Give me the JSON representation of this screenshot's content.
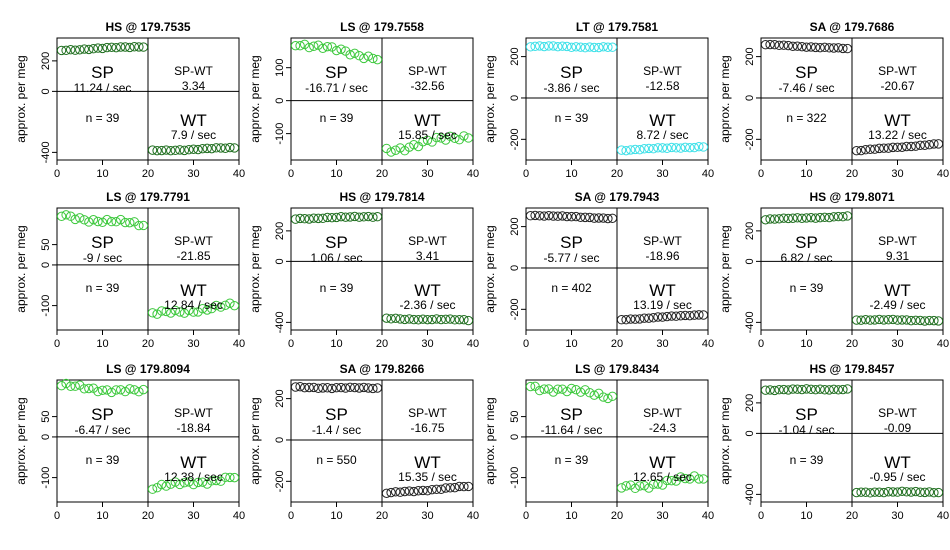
{
  "ylabel": "approx. per meg",
  "x_ticks": [
    0,
    10,
    20,
    30,
    40
  ],
  "chart_data": [
    {
      "type": "scatter",
      "title": "HS @ 179.7535",
      "color": "#1f6e1f",
      "xlim": [
        0,
        40
      ],
      "ylim": [
        -450,
        350
      ],
      "y_ticks": [
        -400,
        0,
        200
      ],
      "split_x": 20,
      "split_y": 0,
      "sp": {
        "label": "SP",
        "value": "11.24 / sec"
      },
      "spwt": {
        "label": "SP-WT",
        "value": "3.34"
      },
      "n": "n = 39",
      "wt": {
        "label": "WT",
        "value": "7.9 / sec"
      },
      "seg1": [
        1,
        19,
        270,
        295,
        10
      ],
      "seg2": [
        21,
        39,
        -390,
        -370,
        10
      ]
    },
    {
      "type": "scatter",
      "title": "LS @ 179.7558",
      "color": "#3cc83c",
      "xlim": [
        0,
        40
      ],
      "ylim": [
        -180,
        190
      ],
      "y_ticks": [
        -100,
        0,
        100
      ],
      "split_x": 20,
      "split_y": 0,
      "sp": {
        "label": "SP",
        "value": "-16.71 / sec"
      },
      "spwt": {
        "label": "SP-WT",
        "value": "-32.56"
      },
      "n": "n = 39",
      "wt": {
        "label": "WT",
        "value": "15.85 / sec"
      },
      "seg1": [
        1,
        19,
        175,
        130,
        20
      ],
      "seg2": [
        21,
        39,
        -150,
        -105,
        25
      ]
    },
    {
      "type": "scatter",
      "title": "LT @ 179.7581",
      "color": "#3ae0e8",
      "xlim": [
        0,
        40
      ],
      "ylim": [
        -300,
        290
      ],
      "y_ticks": [
        -200,
        0,
        200
      ],
      "split_x": 20,
      "split_y": 0,
      "sp": {
        "label": "SP",
        "value": "-3.86 / sec"
      },
      "spwt": {
        "label": "SP-WT",
        "value": "-12.58"
      },
      "n": "n = 39",
      "wt": {
        "label": "WT",
        "value": "8.72 / sec"
      },
      "seg1": [
        1,
        19,
        250,
        245,
        8
      ],
      "seg2": [
        21,
        39,
        -252,
        -235,
        8
      ]
    },
    {
      "type": "scatter",
      "title": "SA @ 179.7686",
      "color": "#222222",
      "xlim": [
        0,
        40
      ],
      "ylim": [
        -300,
        290
      ],
      "y_ticks": [
        -200,
        0,
        200
      ],
      "split_x": 20,
      "split_y": 0,
      "sp": {
        "label": "SP",
        "value": "-7.46 / sec"
      },
      "spwt": {
        "label": "SP-WT",
        "value": "-20.67"
      },
      "n": "n = 322",
      "wt": {
        "label": "WT",
        "value": "13.22 / sec"
      },
      "seg1": [
        1,
        19,
        258,
        238,
        5
      ],
      "seg2": [
        21,
        39,
        -255,
        -222,
        5
      ]
    },
    {
      "type": "scatter",
      "title": "LS @ 179.7791",
      "color": "#3cc83c",
      "xlim": [
        0,
        40
      ],
      "ylim": [
        -160,
        140
      ],
      "y_ticks": [
        -100,
        0,
        50
      ],
      "split_x": 20,
      "split_y": 0,
      "sp": {
        "label": "SP",
        "value": "-9 / sec"
      },
      "spwt": {
        "label": "SP-WT",
        "value": "-21.85"
      },
      "n": "n = 39",
      "wt": {
        "label": "WT",
        "value": "12.84 / sec"
      },
      "seg1": [
        1,
        19,
        120,
        98,
        15
      ],
      "seg2": [
        21,
        39,
        -122,
        -100,
        15
      ]
    },
    {
      "type": "scatter",
      "title": "HS @ 179.7814",
      "color": "#1f6e1f",
      "xlim": [
        0,
        40
      ],
      "ylim": [
        -450,
        350
      ],
      "y_ticks": [
        -400,
        0,
        200
      ],
      "split_x": 20,
      "split_y": 0,
      "sp": {
        "label": "SP",
        "value": "1.06 / sec"
      },
      "spwt": {
        "label": "SP-WT",
        "value": "3.41"
      },
      "n": "n = 39",
      "wt": {
        "label": "WT",
        "value": "-2.36 / sec"
      },
      "seg1": [
        1,
        19,
        280,
        295,
        10
      ],
      "seg2": [
        21,
        39,
        -375,
        -385,
        10
      ]
    },
    {
      "type": "scatter",
      "title": "SA @ 179.7943",
      "color": "#222222",
      "xlim": [
        0,
        40
      ],
      "ylim": [
        -300,
        290
      ],
      "y_ticks": [
        -200,
        0,
        200
      ],
      "split_x": 20,
      "split_y": 0,
      "sp": {
        "label": "SP",
        "value": "-5.77 / sec"
      },
      "spwt": {
        "label": "SP-WT",
        "value": "-18.96"
      },
      "n": "n = 402",
      "wt": {
        "label": "WT",
        "value": "13.19 / sec"
      },
      "seg1": [
        1,
        19,
        255,
        240,
        5
      ],
      "seg2": [
        21,
        39,
        -250,
        -225,
        5
      ]
    },
    {
      "type": "scatter",
      "title": "HS @ 179.8071",
      "color": "#1f6e1f",
      "xlim": [
        0,
        40
      ],
      "ylim": [
        -450,
        350
      ],
      "y_ticks": [
        -400,
        0,
        200
      ],
      "split_x": 20,
      "split_y": 0,
      "sp": {
        "label": "SP",
        "value": "6.82 / sec"
      },
      "spwt": {
        "label": "SP-WT",
        "value": "9.31"
      },
      "n": "n = 39",
      "wt": {
        "label": "WT",
        "value": "-2.49 / sec"
      },
      "seg1": [
        1,
        19,
        275,
        295,
        8
      ],
      "seg2": [
        21,
        39,
        -382,
        -388,
        8
      ]
    },
    {
      "type": "scatter",
      "title": "LS @ 179.8094",
      "color": "#3cc83c",
      "xlim": [
        0,
        40
      ],
      "ylim": [
        -160,
        140
      ],
      "y_ticks": [
        -100,
        0,
        50
      ],
      "split_x": 20,
      "split_y": 0,
      "sp": {
        "label": "SP",
        "value": "-6.47 / sec"
      },
      "spwt": {
        "label": "SP-WT",
        "value": "-18.84"
      },
      "n": "n = 39",
      "wt": {
        "label": "WT",
        "value": "12.38 / sec"
      },
      "seg1": [
        1,
        19,
        125,
        110,
        15
      ],
      "seg2": [
        21,
        39,
        -125,
        -100,
        15
      ]
    },
    {
      "type": "scatter",
      "title": "SA @ 179.8266",
      "color": "#222222",
      "xlim": [
        0,
        40
      ],
      "ylim": [
        -300,
        290
      ],
      "y_ticks": [
        -200,
        0,
        200
      ],
      "split_x": 20,
      "split_y": 0,
      "sp": {
        "label": "SP",
        "value": "-1.4 / sec"
      },
      "spwt": {
        "label": "SP-WT",
        "value": "-16.75"
      },
      "n": "n = 550",
      "wt": {
        "label": "WT",
        "value": "15.35 / sec"
      },
      "seg1": [
        1,
        19,
        255,
        250,
        8
      ],
      "seg2": [
        21,
        39,
        -258,
        -225,
        8
      ]
    },
    {
      "type": "scatter",
      "title": "LS @ 179.8434",
      "color": "#3cc83c",
      "xlim": [
        0,
        40
      ],
      "ylim": [
        -160,
        140
      ],
      "y_ticks": [
        -100,
        0,
        50
      ],
      "split_x": 20,
      "split_y": 0,
      "sp": {
        "label": "SP",
        "value": "-11.64 / sec"
      },
      "spwt": {
        "label": "SP-WT",
        "value": "-24.3"
      },
      "n": "n = 39",
      "wt": {
        "label": "WT",
        "value": "12.65 / sec"
      },
      "seg1": [
        1,
        19,
        125,
        100,
        18
      ],
      "seg2": [
        21,
        39,
        -125,
        -100,
        18
      ]
    },
    {
      "type": "scatter",
      "title": "HS @ 179.8457",
      "color": "#1f6e1f",
      "xlim": [
        0,
        40
      ],
      "ylim": [
        -450,
        350
      ],
      "y_ticks": [
        -400,
        0,
        200
      ],
      "split_x": 20,
      "split_y": 0,
      "sp": {
        "label": "SP",
        "value": "-1.04 / sec"
      },
      "spwt": {
        "label": "SP-WT",
        "value": "-0.09"
      },
      "n": "n = 39",
      "wt": {
        "label": "WT",
        "value": "-0.95 / sec"
      },
      "seg1": [
        1,
        19,
        285,
        290,
        10
      ],
      "seg2": [
        21,
        39,
        -385,
        -385,
        10
      ]
    }
  ]
}
